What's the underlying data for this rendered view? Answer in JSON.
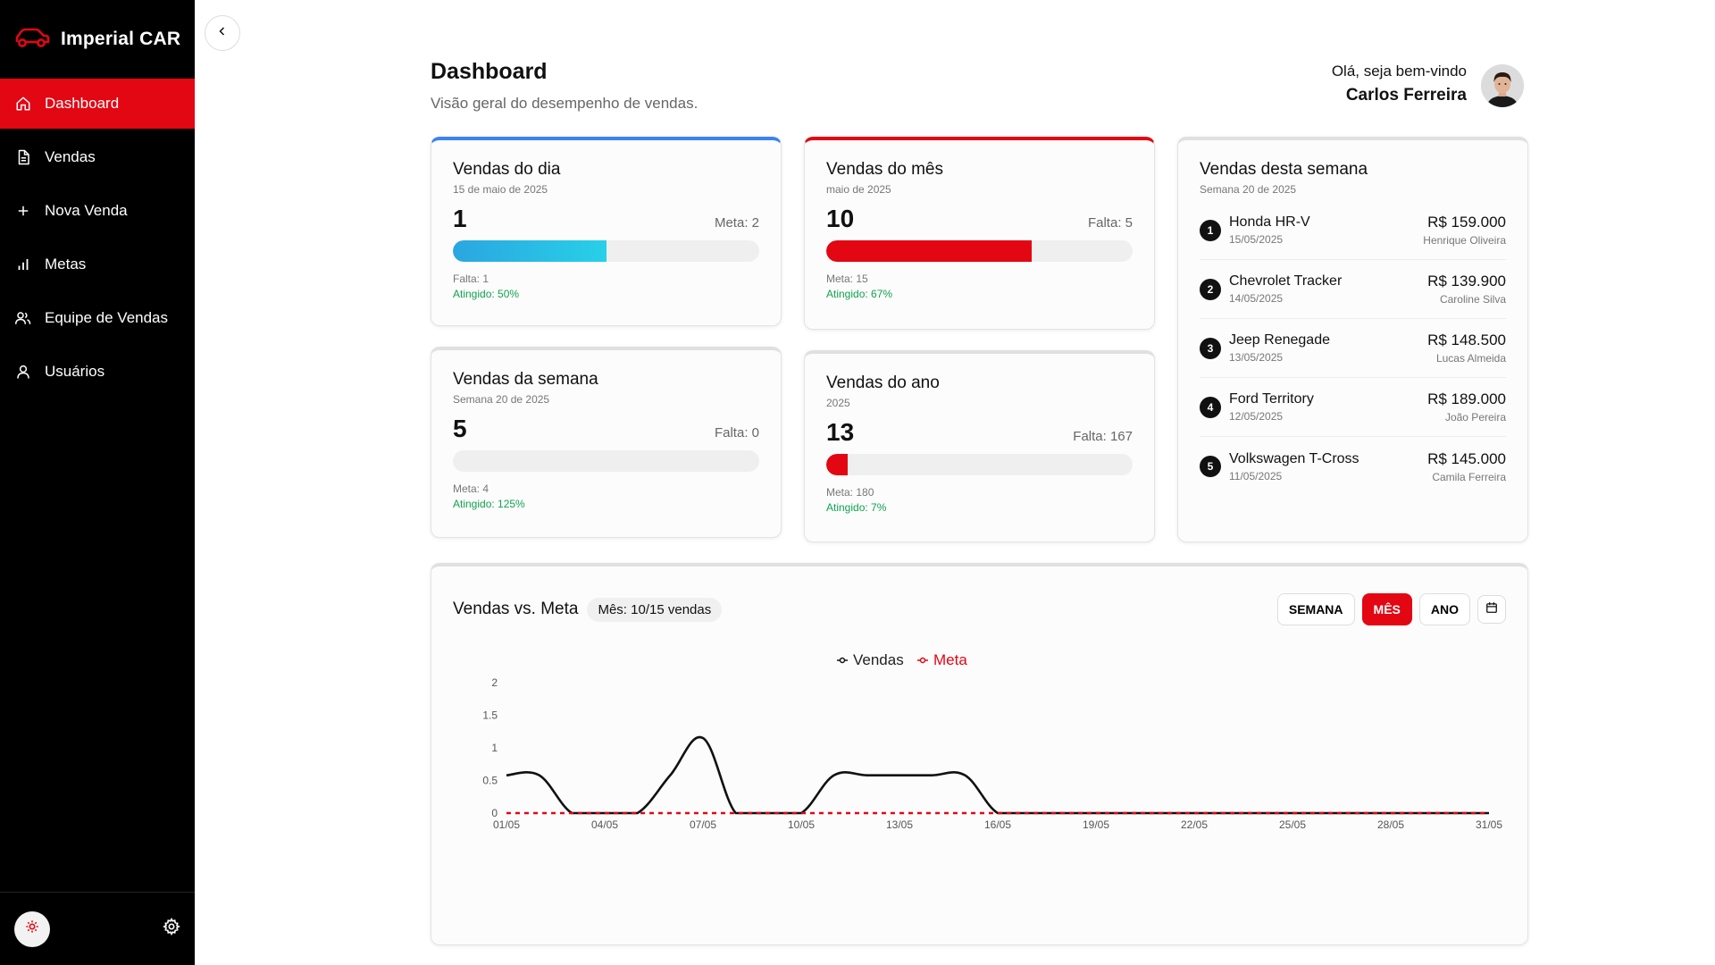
{
  "brand": {
    "name": "Imperial CAR"
  },
  "nav": [
    {
      "label": "Dashboard",
      "icon": "home-icon"
    },
    {
      "label": "Vendas",
      "icon": "document-icon"
    },
    {
      "label": "Nova Venda",
      "icon": "plus-icon"
    },
    {
      "label": "Metas",
      "icon": "bar-chart-icon"
    },
    {
      "label": "Equipe de Vendas",
      "icon": "users-icon"
    },
    {
      "label": "Usuários",
      "icon": "user-icon"
    }
  ],
  "header": {
    "title": "Dashboard",
    "subtitle": "Visão geral do desempenho de vendas.",
    "greeting": "Olá, seja bem-vindo",
    "user_name": "Carlos Ferreira"
  },
  "colors": {
    "accent": "#e30613",
    "blue_fill": "#2bb6e6",
    "success": "#12a150"
  },
  "cards": {
    "dia": {
      "title": "Vendas do dia",
      "sub": "15 de maio de 2025",
      "value": "1",
      "side": "Meta: 2",
      "note": "Falta: 1",
      "achieved": "Atingido: 50%",
      "progress": 0.5
    },
    "mes": {
      "title": "Vendas do mês",
      "sub": "maio de 2025",
      "value": "10",
      "side": "Falta: 5",
      "note": "Meta: 15",
      "achieved": "Atingido: 67%",
      "progress": 0.67
    },
    "semana": {
      "title": "Vendas da semana",
      "sub": "Semana 20 de 2025",
      "value": "5",
      "side": "Falta: 0",
      "note": "Meta: 4",
      "achieved": "Atingido: 125%",
      "progress": 0
    },
    "ano": {
      "title": "Vendas do ano",
      "sub": "2025",
      "value": "13",
      "side": "Falta: 167",
      "note": "Meta: 180",
      "achieved": "Atingido: 7%",
      "progress": 0.07
    }
  },
  "weekly": {
    "title": "Vendas desta semana",
    "sub": "Semana 20 de 2025",
    "items": [
      {
        "rank": "1",
        "car": "Honda HR-V",
        "date": "15/05/2025",
        "price": "R$ 159.000",
        "seller": "Henrique Oliveira"
      },
      {
        "rank": "2",
        "car": "Chevrolet Tracker",
        "date": "14/05/2025",
        "price": "R$ 139.900",
        "seller": "Caroline Silva"
      },
      {
        "rank": "3",
        "car": "Jeep Renegade",
        "date": "13/05/2025",
        "price": "R$ 148.500",
        "seller": "Lucas Almeida"
      },
      {
        "rank": "4",
        "car": "Ford Territory",
        "date": "12/05/2025",
        "price": "R$ 189.000",
        "seller": "João Pereira"
      },
      {
        "rank": "5",
        "car": "Volkswagen T-Cross",
        "date": "11/05/2025",
        "price": "R$ 145.000",
        "seller": "Camila Ferreira"
      }
    ]
  },
  "chart_section": {
    "title": "Vendas vs. Meta",
    "pill": "Mês: 10/15 vendas",
    "buttons": [
      "SEMANA",
      "MÊS",
      "ANO"
    ],
    "active": "MÊS"
  },
  "chart_data": {
    "type": "line",
    "title": "",
    "xlabel": "",
    "ylabel": "",
    "ylim": [
      0,
      2
    ],
    "yticks": [
      "0",
      "0.5",
      "1",
      "1.5",
      "2"
    ],
    "x": [
      "01/05",
      "02/05",
      "03/05",
      "04/05",
      "05/05",
      "06/05",
      "07/05",
      "08/05",
      "09/05",
      "10/05",
      "11/05",
      "12/05",
      "13/05",
      "14/05",
      "15/05",
      "16/05",
      "17/05",
      "18/05",
      "19/05",
      "20/05",
      "21/05",
      "22/05",
      "23/05",
      "24/05",
      "25/05",
      "26/05",
      "27/05",
      "28/05",
      "29/05",
      "30/05",
      "31/05"
    ],
    "xticks": [
      "01/05",
      "04/05",
      "07/05",
      "10/05",
      "13/05",
      "16/05",
      "19/05",
      "22/05",
      "25/05",
      "28/05",
      "31/05"
    ],
    "legend": "top-center",
    "series": [
      {
        "name": "Vendas",
        "color": "#111111",
        "values": [
          0.58,
          0.58,
          0,
          0,
          0,
          0.58,
          1.15,
          0,
          0,
          0,
          0.58,
          0.58,
          0.58,
          0.58,
          0.58,
          0,
          0,
          0,
          0,
          0,
          0,
          0,
          0,
          0,
          0,
          0,
          0,
          0,
          0,
          0,
          0
        ]
      },
      {
        "name": "Meta",
        "color": "#e30613",
        "values": [
          0,
          0,
          0,
          0,
          0,
          0,
          0,
          0,
          0,
          0,
          0,
          0,
          0,
          0,
          0,
          0,
          0,
          0,
          0,
          0,
          0,
          0,
          0,
          0,
          0,
          0,
          0,
          0,
          0,
          0,
          0
        ]
      }
    ]
  }
}
